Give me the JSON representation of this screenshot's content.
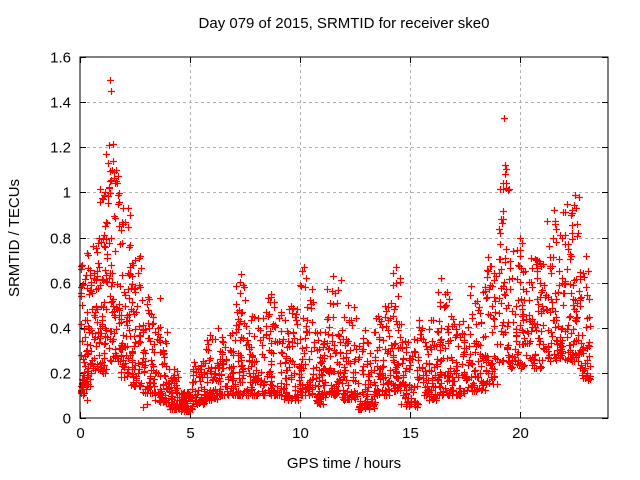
{
  "chart_data": {
    "type": "scatter",
    "title": "Day 079 of 2015, SRMTID for receiver ske0",
    "xlabel": "GPS time / hours",
    "ylabel": "SRMTID / TECUs",
    "xlim": [
      0,
      24
    ],
    "ylim": [
      0,
      1.6
    ],
    "x_ticks": [
      0,
      5,
      10,
      15,
      20
    ],
    "x_tick_labels": [
      "0",
      "5",
      "10",
      "15",
      "20"
    ],
    "y_ticks": [
      0,
      0.2,
      0.4,
      0.6,
      0.8,
      1.0,
      1.2,
      1.4,
      1.6
    ],
    "y_tick_labels": [
      "0",
      "0.2",
      "0.4",
      "0.6",
      "0.8",
      "1",
      "1.2",
      "1.4",
      "1.6"
    ],
    "grid": true,
    "grid_style": "dashed",
    "legend": "none",
    "marker": {
      "shape": "plus",
      "color": "#ff0000",
      "size": 7
    },
    "grid_color": "#b0b0b0",
    "frame_color": "#000000",
    "seed": 79,
    "density_bins": [
      [
        0.02,
        0.3,
        45,
        0.1,
        0.68,
        1.6
      ],
      [
        0.3,
        0.8,
        70,
        0.14,
        0.78,
        1.5
      ],
      [
        0.8,
        1.2,
        60,
        0.2,
        1.05,
        1.4
      ],
      [
        1.2,
        1.8,
        75,
        0.25,
        1.22,
        1.5
      ],
      [
        1.8,
        2.3,
        65,
        0.18,
        0.93,
        1.7
      ],
      [
        2.3,
        2.8,
        60,
        0.14,
        0.72,
        1.8
      ],
      [
        2.8,
        3.4,
        60,
        0.11,
        0.55,
        1.8
      ],
      [
        3.4,
        4.0,
        60,
        0.07,
        0.42,
        1.8
      ],
      [
        4.0,
        4.5,
        55,
        0.04,
        0.22,
        1.7
      ],
      [
        4.5,
        5.1,
        65,
        0.03,
        0.12,
        1.4
      ],
      [
        5.1,
        5.7,
        55,
        0.06,
        0.26,
        1.7
      ],
      [
        5.7,
        6.3,
        60,
        0.08,
        0.42,
        2.0
      ],
      [
        6.3,
        7.0,
        65,
        0.1,
        0.38,
        1.9
      ],
      [
        7.0,
        7.6,
        60,
        0.1,
        0.62,
        2.2
      ],
      [
        7.6,
        8.4,
        70,
        0.1,
        0.46,
        2.0
      ],
      [
        8.4,
        9.2,
        70,
        0.1,
        0.55,
        2.1
      ],
      [
        9.2,
        10.0,
        70,
        0.08,
        0.5,
        1.9
      ],
      [
        10.0,
        10.6,
        60,
        0.1,
        0.65,
        2.1
      ],
      [
        10.6,
        11.2,
        60,
        0.06,
        0.4,
        1.8
      ],
      [
        11.2,
        11.9,
        65,
        0.1,
        0.62,
        2.0
      ],
      [
        11.9,
        12.6,
        65,
        0.08,
        0.5,
        1.9
      ],
      [
        12.6,
        13.4,
        70,
        0.04,
        0.4,
        1.8
      ],
      [
        13.4,
        14.1,
        65,
        0.1,
        0.5,
        1.9
      ],
      [
        14.1,
        14.6,
        55,
        0.12,
        0.65,
        1.9
      ],
      [
        14.6,
        15.4,
        65,
        0.05,
        0.35,
        1.8
      ],
      [
        15.4,
        16.2,
        65,
        0.08,
        0.45,
        1.9
      ],
      [
        16.2,
        16.8,
        60,
        0.1,
        0.62,
        2.0
      ],
      [
        16.8,
        17.6,
        65,
        0.1,
        0.48,
        1.9
      ],
      [
        17.6,
        18.4,
        65,
        0.12,
        0.6,
        1.9
      ],
      [
        18.4,
        19.0,
        55,
        0.15,
        0.72,
        1.8
      ],
      [
        19.0,
        19.5,
        50,
        0.25,
        1.12,
        1.6
      ],
      [
        19.5,
        20.3,
        70,
        0.22,
        0.8,
        1.7
      ],
      [
        20.3,
        21.2,
        75,
        0.22,
        0.72,
        1.6
      ],
      [
        21.2,
        22.0,
        75,
        0.25,
        0.92,
        1.7
      ],
      [
        22.0,
        22.7,
        70,
        0.25,
        0.99,
        1.7
      ],
      [
        22.7,
        23.2,
        50,
        0.16,
        0.65,
        1.5
      ]
    ],
    "notable_points": [
      [
        1.35,
        1.5
      ],
      [
        1.39,
        1.45
      ],
      [
        1.31,
        1.21
      ],
      [
        1.46,
        1.1
      ],
      [
        1.62,
        1.05
      ],
      [
        1.58,
        1.04
      ],
      [
        1.05,
        0.97
      ],
      [
        1.95,
        0.93
      ],
      [
        19.28,
        1.33
      ],
      [
        19.32,
        1.12
      ],
      [
        19.3,
        1.08
      ],
      [
        19.38,
        1.02
      ],
      [
        19.15,
        0.88
      ],
      [
        22.48,
        0.99
      ],
      [
        22.15,
        0.95
      ],
      [
        21.55,
        0.92
      ],
      [
        22.3,
        0.9
      ],
      [
        21.6,
        0.86
      ],
      [
        22.62,
        0.82
      ],
      [
        23.0,
        0.72
      ],
      [
        23.1,
        0.65
      ],
      [
        7.32,
        0.64
      ],
      [
        7.4,
        0.59
      ],
      [
        10.18,
        0.67
      ],
      [
        14.35,
        0.67
      ],
      [
        11.52,
        0.63
      ],
      [
        16.42,
        0.62
      ],
      [
        8.7,
        0.55
      ],
      [
        3.62,
        0.53
      ],
      [
        2.5,
        0.7
      ],
      [
        2.42,
        0.68
      ],
      [
        4.72,
        0.03
      ],
      [
        4.85,
        0.035
      ],
      [
        12.75,
        0.04
      ],
      [
        2.85,
        0.05
      ],
      [
        3.05,
        0.06
      ],
      [
        0.15,
        0.1
      ],
      [
        0.3,
        0.08
      ]
    ]
  }
}
